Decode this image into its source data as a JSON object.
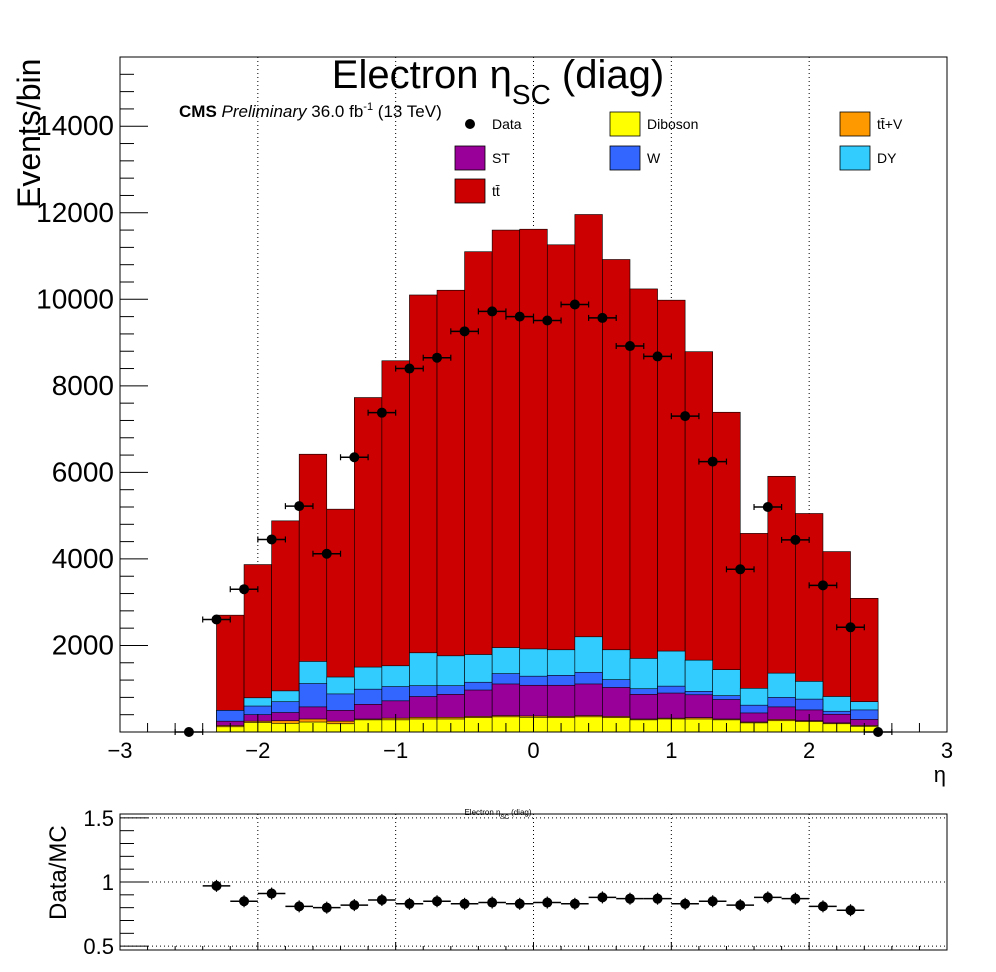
{
  "title": {
    "main": "Electron η",
    "sub": "SC",
    "suffix": " (diag)"
  },
  "cms": {
    "bold": "CMS",
    "italic": "Preliminary",
    "lumi": "36.0 fb",
    "lumi_sup": "-1",
    "energy": " (13 TeV)"
  },
  "ratio_title": {
    "main": "Electron η",
    "sub": "SC",
    "suffix": " (diag)"
  },
  "colors": {
    "ttbar": "#cc0000",
    "DY": "#33ccff",
    "W": "#3366ff",
    "ST": "#990099",
    "Diboson": "#ffff00",
    "ttV": "#ff9900",
    "data": "#000000"
  },
  "chart_data": [
    {
      "type": "bar",
      "subtype": "stacked-histogram-with-data-points",
      "xlabel": "η",
      "ylabel": "Events/bin",
      "xlim": [
        -3,
        3
      ],
      "ylim": [
        0,
        15600
      ],
      "x_ticks": [
        "−3",
        "−2",
        "−1",
        "0",
        "1",
        "2",
        "3"
      ],
      "y_ticks": [
        "2000",
        "4000",
        "6000",
        "8000",
        "10000",
        "12000",
        "14000"
      ],
      "grid": "vertical dotted at major x ticks",
      "bin_edges": [
        -2.5,
        -2.3,
        -2.1,
        -1.9,
        -1.7,
        -1.5,
        -1.3,
        -1.1,
        -0.9,
        -0.7,
        -0.5,
        -0.3,
        -0.1,
        0.1,
        0.3,
        0.5,
        0.7,
        0.9,
        1.1,
        1.3,
        1.5,
        1.7,
        1.9,
        2.1,
        2.3,
        2.5
      ],
      "legend": [
        {
          "key": "Data",
          "label": "Data",
          "style": "marker"
        },
        {
          "key": "Diboson",
          "label": "Diboson",
          "style": "box"
        },
        {
          "key": "ttV",
          "label": "tt̄+V",
          "style": "box"
        },
        {
          "key": "ST",
          "label": "ST",
          "style": "box"
        },
        {
          "key": "W",
          "label": "W",
          "style": "box"
        },
        {
          "key": "DY",
          "label": "DY",
          "style": "box"
        },
        {
          "key": "ttbar",
          "label": "tt̄",
          "style": "box"
        }
      ],
      "stack_order": [
        "Diboson",
        "ttV",
        "ST",
        "W",
        "DY",
        "ttbar"
      ],
      "cumulative": {
        "Diboson": [
          0,
          120,
          220,
          200,
          230,
          190,
          280,
          280,
          300,
          300,
          330,
          350,
          340,
          330,
          350,
          330,
          280,
          300,
          300,
          280,
          210,
          260,
          240,
          190,
          130
        ],
        "ttV": [
          0,
          150,
          250,
          260,
          300,
          250,
          300,
          320,
          340,
          340,
          360,
          380,
          370,
          360,
          380,
          360,
          300,
          320,
          330,
          300,
          230,
          290,
          260,
          210,
          150
        ],
        "ST": [
          0,
          250,
          400,
          450,
          580,
          500,
          640,
          720,
          820,
          870,
          970,
          1110,
          1080,
          1080,
          1110,
          1030,
          870,
          900,
          860,
          750,
          440,
          580,
          510,
          410,
          290
        ],
        "W": [
          0,
          500,
          600,
          700,
          1120,
          880,
          990,
          1050,
          1070,
          1070,
          1150,
          1350,
          1290,
          1310,
          1380,
          1210,
          1000,
          1060,
          940,
          840,
          620,
          800,
          760,
          480,
          510
        ],
        "DY": [
          0,
          500,
          790,
          950,
          1630,
          1270,
          1500,
          1530,
          1830,
          1760,
          1790,
          1950,
          1920,
          1900,
          2200,
          1900,
          1700,
          1870,
          1660,
          1440,
          1010,
          1360,
          1170,
          820,
          700
        ],
        "ttbar": [
          0,
          2700,
          3870,
          4880,
          6420,
          5150,
          7730,
          8580,
          10100,
          10210,
          11100,
          11600,
          11620,
          11260,
          11960,
          10920,
          10240,
          9980,
          8790,
          7390,
          4590,
          5910,
          5050,
          4170,
          3090
        ]
      },
      "data_points": [
        {
          "x": -2.5,
          "y": 0
        },
        {
          "x": -2.3,
          "y": 2600
        },
        {
          "x": -2.1,
          "y": 3300
        },
        {
          "x": -1.9,
          "y": 4450
        },
        {
          "x": -1.7,
          "y": 5220
        },
        {
          "x": -1.5,
          "y": 4120
        },
        {
          "x": -1.3,
          "y": 6350
        },
        {
          "x": -1.1,
          "y": 7380
        },
        {
          "x": -0.9,
          "y": 8400
        },
        {
          "x": -0.7,
          "y": 8650
        },
        {
          "x": -0.5,
          "y": 9260
        },
        {
          "x": -0.3,
          "y": 9720
        },
        {
          "x": -0.1,
          "y": 9600
        },
        {
          "x": 0.1,
          "y": 9510
        },
        {
          "x": 0.3,
          "y": 9880
        },
        {
          "x": 0.5,
          "y": 9570
        },
        {
          "x": 0.7,
          "y": 8920
        },
        {
          "x": 0.9,
          "y": 8680
        },
        {
          "x": 1.1,
          "y": 7300
        },
        {
          "x": 1.3,
          "y": 6250
        },
        {
          "x": 1.5,
          "y": 3760
        },
        {
          "x": 1.7,
          "y": 5200
        },
        {
          "x": 1.9,
          "y": 4440
        },
        {
          "x": 2.1,
          "y": 3390
        },
        {
          "x": 2.3,
          "y": 2420
        },
        {
          "x": 2.5,
          "y": 0
        }
      ]
    },
    {
      "type": "scatter",
      "subtype": "ratio",
      "xlabel": "",
      "ylabel": "Data/MC",
      "xlim": [
        -3,
        3
      ],
      "ylim": [
        0.47,
        1.53
      ],
      "y_ticks": [
        "0.5",
        "1",
        "1.5"
      ],
      "grid": "vertical dotted at major x ticks, horizontal dotted at 0.5, 1, 1.5",
      "points": [
        {
          "x": -2.3,
          "y": 0.97
        },
        {
          "x": -2.1,
          "y": 0.85
        },
        {
          "x": -1.9,
          "y": 0.91
        },
        {
          "x": -1.7,
          "y": 0.81
        },
        {
          "x": -1.5,
          "y": 0.8
        },
        {
          "x": -1.3,
          "y": 0.82
        },
        {
          "x": -1.1,
          "y": 0.86
        },
        {
          "x": -0.9,
          "y": 0.83
        },
        {
          "x": -0.7,
          "y": 0.85
        },
        {
          "x": -0.5,
          "y": 0.83
        },
        {
          "x": -0.3,
          "y": 0.84
        },
        {
          "x": -0.1,
          "y": 0.83
        },
        {
          "x": 0.1,
          "y": 0.84
        },
        {
          "x": 0.3,
          "y": 0.83
        },
        {
          "x": 0.5,
          "y": 0.88
        },
        {
          "x": 0.7,
          "y": 0.87
        },
        {
          "x": 0.9,
          "y": 0.87
        },
        {
          "x": 1.1,
          "y": 0.83
        },
        {
          "x": 1.3,
          "y": 0.85
        },
        {
          "x": 1.5,
          "y": 0.82
        },
        {
          "x": 1.7,
          "y": 0.88
        },
        {
          "x": 1.9,
          "y": 0.87
        },
        {
          "x": 2.1,
          "y": 0.81
        },
        {
          "x": 2.3,
          "y": 0.78
        }
      ]
    }
  ]
}
